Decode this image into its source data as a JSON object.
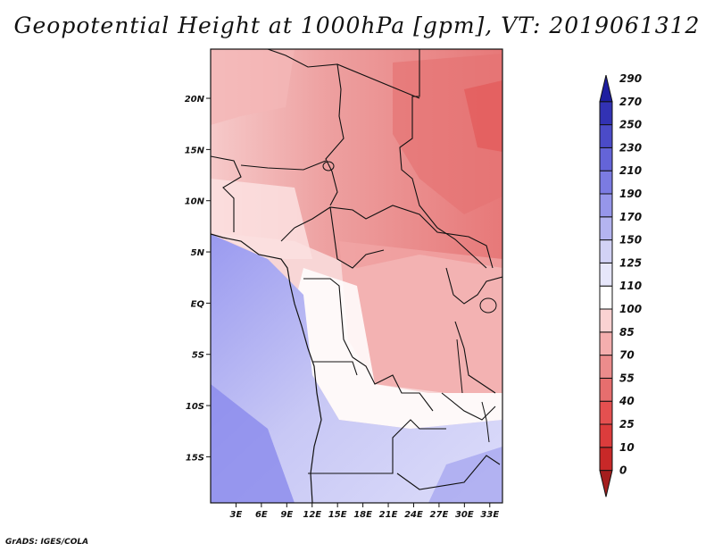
{
  "title": "Geopotential Height at 1000hPa [gpm], VT: 2019061312",
  "credit": "GrADS: IGES/COLA",
  "chart_data": {
    "type": "heatmap",
    "variable": "Geopotential Height",
    "level": "1000hPa",
    "units": "gpm",
    "valid_time": "2019061312",
    "x_ticks": [
      "3E",
      "6E",
      "9E",
      "12E",
      "15E",
      "18E",
      "21E",
      "24E",
      "27E",
      "30E",
      "33E"
    ],
    "y_ticks": [
      "20N",
      "15N",
      "10N",
      "5N",
      "EQ",
      "5S",
      "10S",
      "15S"
    ],
    "xlim": [
      0,
      34.5
    ],
    "ylim": [
      -19.5,
      24.8
    ],
    "colorbar": {
      "levels": [
        "0",
        "10",
        "25",
        "40",
        "55",
        "70",
        "85",
        "100",
        "110",
        "125",
        "150",
        "170",
        "190",
        "210",
        "230",
        "250",
        "270",
        "290"
      ],
      "colors": [
        "#a51e1e",
        "#c82828",
        "#dc3c3c",
        "#e45050",
        "#e66e6e",
        "#ec8c8c",
        "#f4aeae",
        "#fad2d2",
        "#ffffff",
        "#e6e6fa",
        "#d2d2f5",
        "#b4b4f0",
        "#9696ea",
        "#7b7be2",
        "#6464d8",
        "#4b4bc8",
        "#3232b4",
        "#1e1ea0"
      ]
    }
  }
}
